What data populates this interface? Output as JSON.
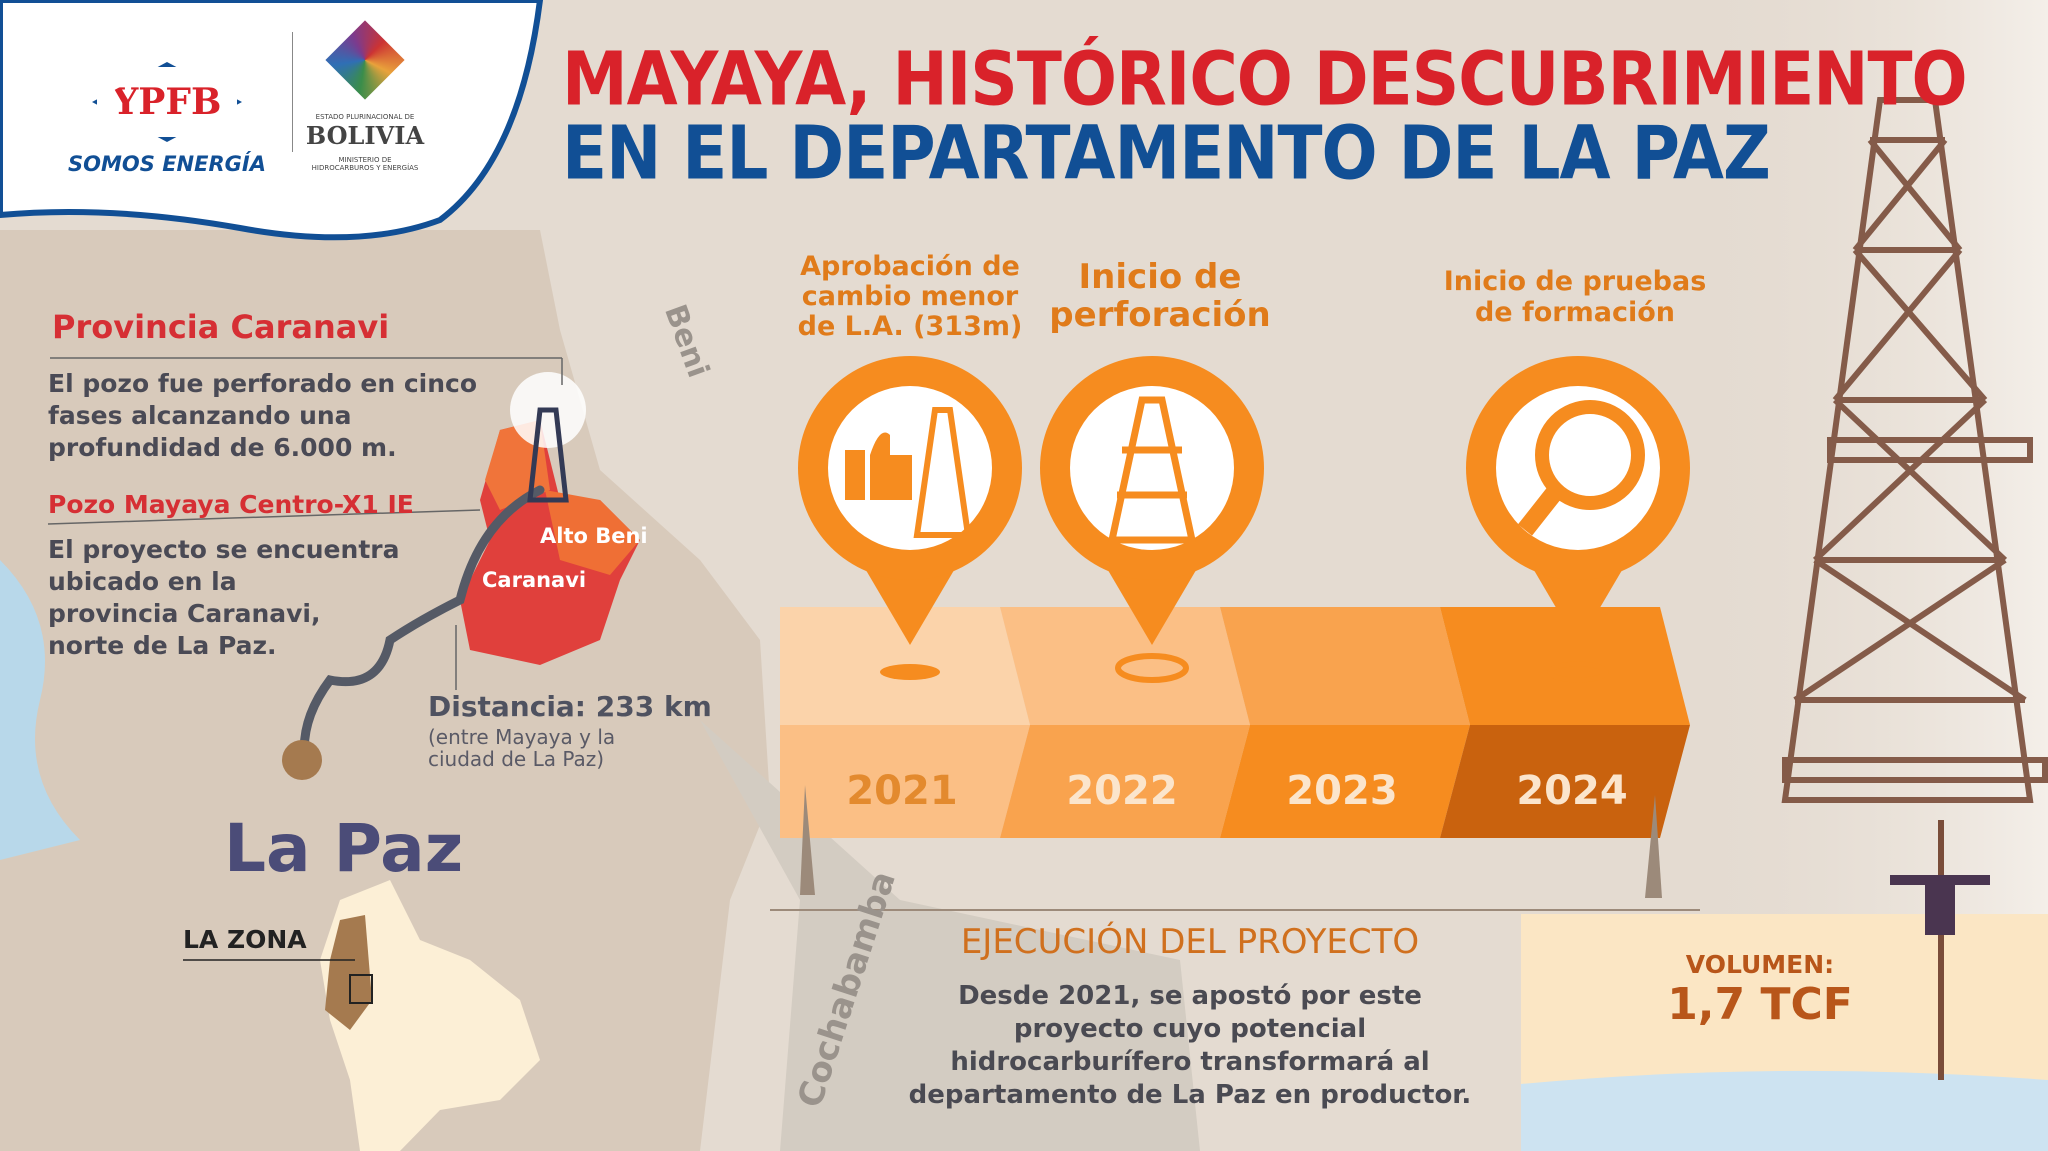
{
  "logos": {
    "ypfb": "YPFB",
    "ypfb_slogan": "SOMOS ENERGÍA",
    "bolivia_top": "ESTADO PLURINACIONAL DE",
    "bolivia": "BOLIVIA",
    "ministry_1": "MINISTERIO DE",
    "ministry_2": "HIDROCARBUROS Y ENERGÍAS"
  },
  "title": {
    "line1": "MAYAYA, HISTÓRICO DESCUBRIMIENTO",
    "line2": "EN EL DEPARTAMENTO DE LA PAZ"
  },
  "left": {
    "province_title": "Provincia Caranavi",
    "province_text": [
      "El pozo fue perforado en cinco",
      "fases alcanzando una",
      "profundidad de 6.000 m."
    ],
    "well_title": "Pozo Mayaya Centro-X1 IE",
    "well_text": [
      "El proyecto se encuentra",
      "ubicado en la",
      "provincia Caranavi,",
      "norte de La Paz."
    ],
    "distance": "Distancia: 233 km",
    "distance_note": [
      "(entre Mayaya y la",
      "ciudad de La Paz)"
    ],
    "city": "La Paz",
    "zone": "LA ZONA"
  },
  "map_labels": {
    "alto_beni": "Alto Beni",
    "caranavi": "Caranavi",
    "beni": "Beni",
    "cochabamba": "Cochabamba"
  },
  "timeline": {
    "milestones": [
      {
        "label": [
          "Aprobación de",
          "cambio menor",
          "de L.A. (313m)"
        ],
        "icon": "thumbs-up-derrick-icon",
        "year": "2021"
      },
      {
        "label": [
          "Inicio de",
          "perforación"
        ],
        "icon": "oil-derrick-icon",
        "year": "2022"
      },
      {
        "label": [
          "Inicio de pruebas",
          "de formación"
        ],
        "icon": "magnifier-icon",
        "year": "2024"
      }
    ],
    "years": [
      "2021",
      "2022",
      "2023",
      "2024"
    ],
    "colors": [
      "#fbbf85",
      "#f9a34e",
      "#f68c1f",
      "#c9620e"
    ]
  },
  "execution": {
    "title": "EJECUCIÓN DEL PROYECTO",
    "text": [
      "Desde 2021, se apostó por este",
      "proyecto cuyo potencial",
      "hidrocarburífero transformará al",
      "departamento de La Paz en productor."
    ]
  },
  "volume": {
    "label": "VOLUMEN:",
    "value": "1,7 TCF"
  },
  "colors": {
    "red": "#d9222a",
    "blue": "#114f95",
    "orange": "#f68c1f"
  }
}
